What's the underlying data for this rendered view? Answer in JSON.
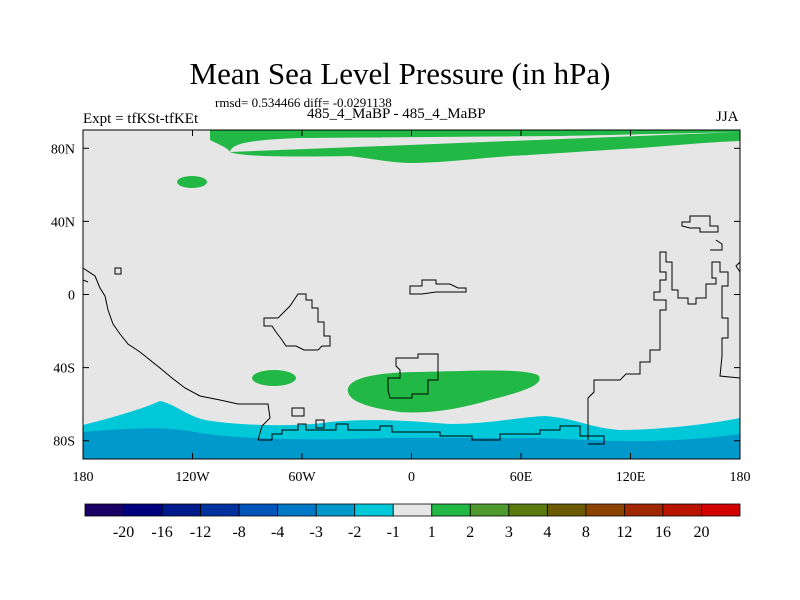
{
  "title": "Mean Sea Level Pressure (in hPa)",
  "stats": "rmsd= 0.534466 diff= -0.0291138",
  "left_label": "Expt = tfKSt-tfKEt",
  "center_label": "485_4_MaBP - 485_4_MaBP",
  "right_label": "JJA",
  "chart_data": {
    "type": "heatmap",
    "title": "Mean Sea Level Pressure (in hPa)",
    "subtitle": "485_4_MaBP - 485_4_MaBP",
    "x_range": [
      -180,
      180
    ],
    "y_range": [
      -90,
      90
    ],
    "x_ticks": [
      {
        "value": -180,
        "label": "180"
      },
      {
        "value": -120,
        "label": "120W"
      },
      {
        "value": -60,
        "label": "60W"
      },
      {
        "value": 0,
        "label": "0"
      },
      {
        "value": 60,
        "label": "60E"
      },
      {
        "value": 120,
        "label": "120E"
      },
      {
        "value": 180,
        "label": "180"
      }
    ],
    "y_ticks": [
      {
        "value": 80,
        "label": "80N"
      },
      {
        "value": 40,
        "label": "40N"
      },
      {
        "value": 0,
        "label": "0"
      },
      {
        "value": -40,
        "label": "40S"
      },
      {
        "value": -80,
        "label": "80S"
      }
    ],
    "colorbar": {
      "labels": [
        "-20",
        "-16",
        "-12",
        "-8",
        "-4",
        "-3",
        "-2",
        "-1",
        "1",
        "2",
        "3",
        "4",
        "8",
        "12",
        "16",
        "20"
      ],
      "colors": [
        "#1a0066",
        "#00007f",
        "#001a8c",
        "#0033a0",
        "#0055bb",
        "#0078c8",
        "#0099cc",
        "#00c8d8",
        "#e6e6e6",
        "#22b845",
        "#4e9a2e",
        "#5a7a10",
        "#6b5a00",
        "#8a4400",
        "#a02800",
        "#b81400",
        "#d40000"
      ]
    },
    "background_color": "#e6e6e6",
    "regions": [
      {
        "name": "arctic-positive",
        "bin": "1 to 2",
        "color": "#22b845",
        "lon": [
          -100,
          180
        ],
        "lat": [
          66,
          88
        ]
      },
      {
        "name": "north-pacific-positive",
        "bin": "1 to 2",
        "color": "#22b845",
        "lon": [
          -131,
          -114
        ],
        "lat": [
          58,
          62
        ]
      },
      {
        "name": "south-atlantic-positive",
        "bin": "1 to 2",
        "color": "#22b845",
        "lon": [
          -36,
          70
        ],
        "lat": [
          -66,
          -42
        ]
      },
      {
        "name": "south-pacific-positive",
        "bin": "1 to 2",
        "color": "#22b845",
        "lon": [
          -88,
          -63
        ],
        "lat": [
          -50,
          -41
        ]
      },
      {
        "name": "southern-ocean-band",
        "bin": "-2 to -1",
        "color": "#00c8d8",
        "lon": [
          -180,
          180
        ],
        "lat": [
          -90,
          -65
        ]
      },
      {
        "name": "antarctic-band",
        "bin": "-3 to -2",
        "color": "#0099cc",
        "lon": [
          -180,
          180
        ],
        "lat": [
          -90,
          -72
        ]
      }
    ]
  }
}
